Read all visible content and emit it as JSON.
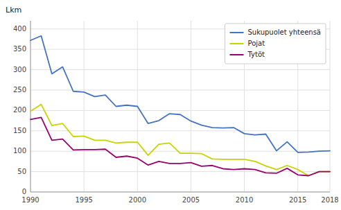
{
  "chart_data": {
    "type": "line",
    "ylabel": "Lkm",
    "x": [
      1990,
      1991,
      1992,
      1993,
      1994,
      1995,
      1996,
      1997,
      1998,
      1999,
      2000,
      2001,
      2002,
      2003,
      2004,
      2005,
      2006,
      2007,
      2008,
      2009,
      2010,
      2011,
      2012,
      2013,
      2014,
      2015,
      2016,
      2017,
      2018
    ],
    "series": [
      {
        "name": "Sukupuolet yhteensä",
        "color": "#4472C4",
        "values": [
          372,
          383,
          290,
          307,
          247,
          245,
          234,
          238,
          210,
          213,
          210,
          168,
          175,
          192,
          190,
          174,
          164,
          158,
          157,
          158,
          143,
          140,
          142,
          101,
          123,
          97,
          98,
          100,
          101
        ]
      },
      {
        "name": "Pojat",
        "color": "#C8D400",
        "values": [
          198,
          215,
          163,
          168,
          136,
          137,
          127,
          127,
          120,
          122,
          122,
          90,
          117,
          120,
          95,
          95,
          94,
          81,
          80,
          80,
          80,
          75,
          64,
          55,
          65,
          55,
          40,
          50,
          50
        ]
      },
      {
        "name": "Tytöt",
        "color": "#9B0070",
        "values": [
          178,
          183,
          127,
          130,
          103,
          104,
          104,
          105,
          85,
          88,
          83,
          66,
          75,
          70,
          70,
          72,
          63,
          65,
          57,
          55,
          57,
          55,
          47,
          46,
          58,
          42,
          40,
          50,
          50
        ]
      }
    ],
    "xlim": [
      1990,
      2018
    ],
    "xticks": [
      1990,
      1995,
      2000,
      2005,
      2010,
      2015,
      2018
    ],
    "ylim": [
      0,
      420
    ],
    "yticks": [
      0,
      50,
      100,
      150,
      200,
      250,
      300,
      350,
      400
    ],
    "grid": true,
    "legend": "upper right"
  }
}
